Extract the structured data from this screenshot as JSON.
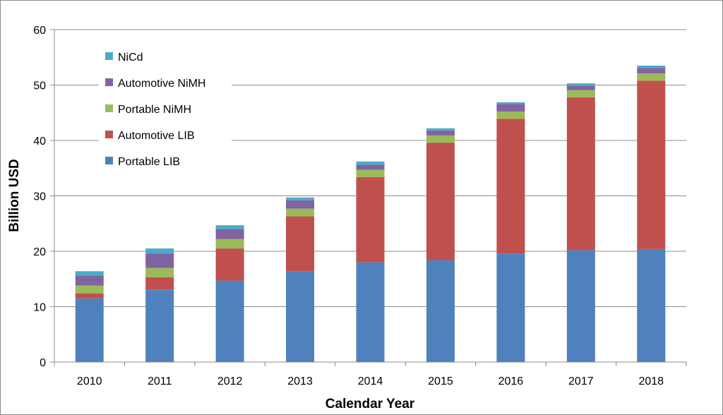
{
  "chart_data": {
    "type": "bar",
    "stacked": true,
    "xlabel": "Calendar Year",
    "ylabel": "Billion USD",
    "ylim": [
      0,
      60
    ],
    "yticks": [
      0,
      10,
      20,
      30,
      40,
      50,
      60
    ],
    "grid": true,
    "legend_position": "top-left",
    "categories": [
      "2010",
      "2011",
      "2012",
      "2013",
      "2014",
      "2015",
      "2016",
      "2017",
      "2018"
    ],
    "series": [
      {
        "name": "Portable LIB",
        "color": "#4f81bd",
        "values": [
          11.5,
          13.1,
          14.7,
          16.4,
          18.0,
          18.4,
          19.6,
          20.2,
          20.4
        ]
      },
      {
        "name": "Automotive LIB",
        "color": "#c0504d",
        "values": [
          0.9,
          2.2,
          5.8,
          9.9,
          15.4,
          21.2,
          24.3,
          27.6,
          30.4
        ]
      },
      {
        "name": "Portable NiMH",
        "color": "#9bbb59",
        "values": [
          1.4,
          1.7,
          1.7,
          1.4,
          1.3,
          1.3,
          1.3,
          1.3,
          1.3
        ]
      },
      {
        "name": "Automotive NiMH",
        "color": "#8064a2",
        "values": [
          1.8,
          2.6,
          1.8,
          1.5,
          0.9,
          0.9,
          1.4,
          0.8,
          1.0
        ]
      },
      {
        "name": "NiCd",
        "color": "#4bacc6",
        "values": [
          0.8,
          0.9,
          0.7,
          0.5,
          0.6,
          0.4,
          0.3,
          0.4,
          0.4
        ]
      }
    ],
    "legend_order": [
      "NiCd",
      "Automotive NiMH",
      "Portable NiMH",
      "Automotive LIB",
      "Portable LIB"
    ]
  }
}
